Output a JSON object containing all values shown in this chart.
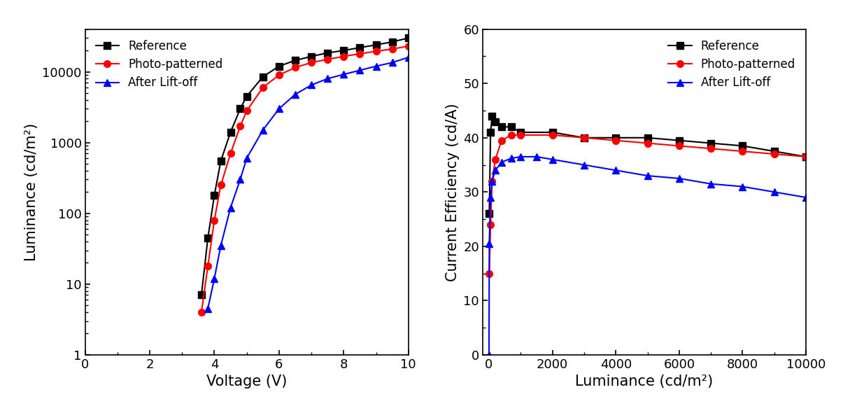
{
  "plot1": {
    "xlabel": "Voltage (V)",
    "ylabel": "Luminance (cd/m²)",
    "xlim": [
      0,
      10
    ],
    "ylim_log": [
      1,
      40000
    ],
    "xticks": [
      0,
      2,
      4,
      6,
      8,
      10
    ],
    "series": [
      {
        "label": "Reference",
        "color": "#000000",
        "marker": "s",
        "x": [
          3.6,
          3.8,
          4.0,
          4.2,
          4.5,
          4.8,
          5.0,
          5.5,
          6.0,
          6.5,
          7.0,
          7.5,
          8.0,
          8.5,
          9.0,
          9.5,
          10.0
        ],
        "y": [
          7.0,
          45,
          180,
          550,
          1400,
          3000,
          4500,
          8500,
          12000,
          14500,
          16500,
          18500,
          20000,
          22000,
          24000,
          26500,
          30000
        ]
      },
      {
        "label": "Photo-patterned",
        "color": "#ff0000",
        "marker": "o",
        "x": [
          3.6,
          3.8,
          4.0,
          4.2,
          4.5,
          4.8,
          5.0,
          5.5,
          6.0,
          6.5,
          7.0,
          7.5,
          8.0,
          8.5,
          9.0,
          9.5,
          10.0
        ],
        "y": [
          4.0,
          18,
          80,
          250,
          700,
          1700,
          2800,
          6000,
          9000,
          11500,
          13500,
          15000,
          16500,
          18000,
          19500,
          21000,
          23000
        ]
      },
      {
        "label": "After Lift-off",
        "color": "#0000ff",
        "marker": "^",
        "x": [
          3.8,
          4.0,
          4.2,
          4.5,
          4.8,
          5.0,
          5.5,
          6.0,
          6.5,
          7.0,
          7.5,
          8.0,
          8.5,
          9.0,
          9.5,
          10.0
        ],
        "y": [
          4.5,
          12,
          35,
          120,
          300,
          600,
          1500,
          3000,
          4800,
          6500,
          8000,
          9200,
          10500,
          12000,
          13500,
          16000
        ]
      }
    ]
  },
  "plot2": {
    "xlabel": "Luminance (cd/m²)",
    "ylabel": "Current Efficiency (cd/A)",
    "xlim": [
      -200,
      10000
    ],
    "ylim": [
      0,
      60
    ],
    "xticks": [
      0,
      2000,
      4000,
      6000,
      8000,
      10000
    ],
    "yticks": [
      0,
      10,
      20,
      30,
      40,
      50,
      60
    ],
    "series": [
      {
        "label": "Reference",
        "color": "#000000",
        "marker": "s",
        "x": [
          10,
          50,
          100,
          200,
          400,
          700,
          1000,
          2000,
          3000,
          4000,
          5000,
          6000,
          7000,
          8000,
          9000,
          10000
        ],
        "y": [
          26,
          41,
          44,
          43,
          42,
          42,
          41,
          41,
          40,
          40,
          40,
          39.5,
          39,
          38.5,
          37.5,
          36.5
        ]
      },
      {
        "label": "Photo-patterned",
        "color": "#ff0000",
        "marker": "o",
        "x": [
          10,
          50,
          100,
          200,
          400,
          700,
          1000,
          2000,
          3000,
          4000,
          5000,
          6000,
          7000,
          8000,
          9000,
          10000
        ],
        "y": [
          15,
          24,
          32,
          36,
          39.5,
          40.5,
          40.5,
          40.5,
          40,
          39.5,
          39,
          38.5,
          38,
          37.5,
          37,
          36.5
        ]
      },
      {
        "label": "After Lift-off",
        "color": "#0000ff",
        "marker": "^",
        "x": [
          1,
          10,
          50,
          100,
          200,
          400,
          700,
          1000,
          1500,
          2000,
          3000,
          4000,
          5000,
          6000,
          7000,
          8000,
          9000,
          10000
        ],
        "y": [
          0,
          20.5,
          29,
          32,
          34,
          35.5,
          36.2,
          36.5,
          36.5,
          36,
          35,
          34,
          33,
          32.5,
          31.5,
          31,
          30,
          29
        ]
      }
    ]
  },
  "line_width": 1.5,
  "marker_size": 7,
  "font_size_label": 15,
  "font_size_tick": 13,
  "font_size_legend": 12
}
